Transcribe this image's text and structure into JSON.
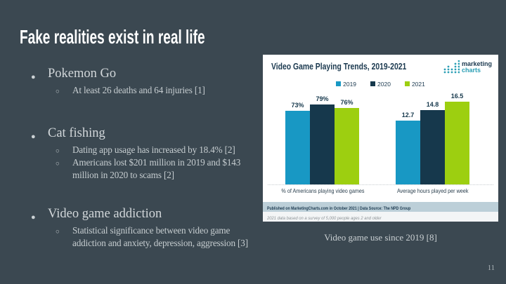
{
  "slide": {
    "title": "Fake realities exist in real life",
    "page_number": "11",
    "caption": "Video game use since 2019 [8]",
    "bullets": [
      {
        "label": "Pokemon Go",
        "subs": [
          "At least 26 deaths and 64 injuries [1]"
        ]
      },
      {
        "label": "Cat fishing",
        "subs": [
          "Dating app usage has increased by 18.4% [2]",
          "Americans lost $201 million in 2019 and $143 million in 2020 to scams [2]"
        ]
      },
      {
        "label": "Video game addiction",
        "subs": [
          "Statistical significance between video game addiction and anxiety, depression, aggression [3]"
        ]
      }
    ],
    "colors": {
      "background": "#3B4851",
      "title_text": "#FFFFFF",
      "body_text": "#C6CDD0",
      "caption_text": "#C9CFD2"
    }
  },
  "chart": {
    "title": "Video Game Playing Trends, 2019-2021",
    "logo": {
      "line1": "marketing",
      "line2": "charts"
    },
    "legend": [
      "2019",
      "2020",
      "2021"
    ],
    "series_colors": {
      "2019": "#1898C4",
      "2020": "#16384C",
      "2021": "#9DCF10"
    },
    "footer": "Published on MarketingCharts.com in October 2021 | Data Source: The NPD Group",
    "note": "2021 data based on a survey of 5,000 people ages 2 and older",
    "colors": {
      "card_background": "#FFFFFF",
      "title_text": "#1C3A50",
      "footer_band": "#BCCFD8",
      "note_background": "#F3F5F6",
      "logo_teal": "#2C9FB5"
    }
  },
  "chart_data": {
    "type": "bar",
    "title": "Video Game Playing Trends, 2019-2021",
    "series": [
      "2019",
      "2020",
      "2021"
    ],
    "legend_position": "top-center",
    "grid": false,
    "groups": [
      {
        "label": "% of Americans playing video games",
        "unit": "%",
        "axis_range": [
          0,
          100
        ],
        "scale_max": 100,
        "values": [
          {
            "year": "2019",
            "value": 73,
            "display": "73%"
          },
          {
            "year": "2020",
            "value": 79,
            "display": "79%"
          },
          {
            "year": "2021",
            "value": 76,
            "display": "76%"
          }
        ]
      },
      {
        "label": "Average hours played per week",
        "unit": "hours",
        "axis_range": [
          0,
          20
        ],
        "scale_max": 20.2,
        "values": [
          {
            "year": "2019",
            "value": 12.7,
            "display": "12.7"
          },
          {
            "year": "2020",
            "value": 14.8,
            "display": "14.8"
          },
          {
            "year": "2021",
            "value": 16.5,
            "display": "16.5"
          }
        ]
      }
    ]
  }
}
